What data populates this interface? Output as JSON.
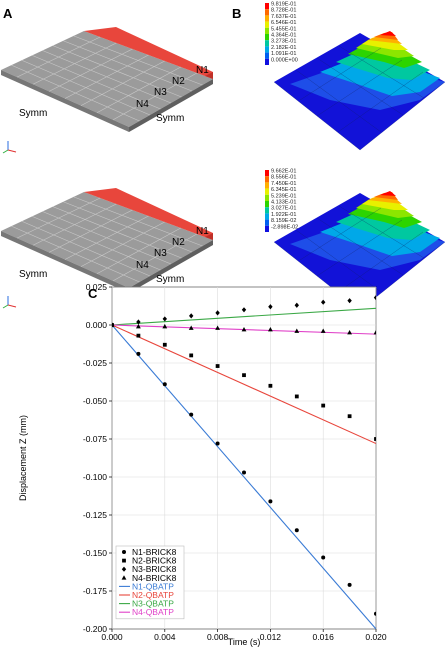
{
  "panels": {
    "a": {
      "letter": "A",
      "models": [
        {
          "nodes": [
            "N1",
            "N2",
            "N3",
            "N4"
          ],
          "symm_left": "Symm",
          "symm_right": "Symm"
        },
        {
          "nodes": [
            "N1",
            "N2",
            "N3",
            "N4"
          ],
          "symm_left": "Symm",
          "symm_right": "Symm"
        }
      ]
    },
    "b": {
      "letter": "B",
      "contours": [
        {
          "legend": [
            "9.819E-01",
            "8.728E-01",
            "7.637E-01",
            "6.546E-01",
            "5.455E-01",
            "4.364E-01",
            "3.273E-01",
            "2.182E-01",
            "1.091E-01",
            "0.000E+00"
          ]
        },
        {
          "legend": [
            "9.662E-01",
            "8.556E-01",
            "7.450E-01",
            "6.345E-01",
            "5.239E-01",
            "4.133E-01",
            "3.027E-01",
            "1.922E-01",
            "8.159E-02",
            "-2.898E-02"
          ]
        }
      ]
    },
    "c": {
      "letter": "C"
    }
  },
  "colors": {
    "plate": "#9b9b9b",
    "plate_side": "#6f6f6f",
    "loaded_strip": "#e8463c",
    "contour_scale": [
      "#ff0000",
      "#ff6a00",
      "#ffb000",
      "#e8f000",
      "#8ce600",
      "#2cd400",
      "#00c8a0",
      "#00a8e8",
      "#0060f0",
      "#1010e0"
    ]
  },
  "chart_data": {
    "type": "line",
    "title": "",
    "xlabel": "Time (s)",
    "ylabel": "Displacement Z (mm)",
    "xlim": [
      0.0,
      0.02
    ],
    "ylim": [
      -0.2,
      0.025
    ],
    "xticks": [
      "0.000",
      "0.004",
      "0.008",
      "0.012",
      "0.016",
      "0.020"
    ],
    "xtick_values": [
      0.0,
      0.004,
      0.008,
      0.012,
      0.016,
      0.02
    ],
    "yticks": [
      "0.025",
      "0.000",
      "-0.025",
      "-0.050",
      "-0.075",
      "-0.100",
      "-0.125",
      "-0.150",
      "-0.175",
      "-0.200"
    ],
    "ytick_values": [
      0.025,
      0.0,
      -0.025,
      -0.05,
      -0.075,
      -0.1,
      -0.125,
      -0.15,
      -0.175,
      -0.2
    ],
    "grid": true,
    "legend_position": "bottom-left",
    "x": [
      0.0,
      0.002,
      0.004,
      0.006,
      0.008,
      0.01,
      0.012,
      0.014,
      0.016,
      0.018,
      0.02
    ],
    "markers": [
      {
        "name": "N1-BRICK8",
        "marker": "circle",
        "color": "#000000",
        "values": [
          0.0,
          -0.019,
          -0.039,
          -0.059,
          -0.078,
          -0.097,
          -0.116,
          -0.135,
          -0.153,
          -0.171,
          -0.19
        ]
      },
      {
        "name": "N2-BRICK8",
        "marker": "square",
        "color": "#000000",
        "values": [
          0.0,
          -0.007,
          -0.013,
          -0.02,
          -0.027,
          -0.033,
          -0.04,
          -0.047,
          -0.053,
          -0.06,
          -0.075
        ]
      },
      {
        "name": "N3-BRICK8",
        "marker": "diamond",
        "color": "#000000",
        "values": [
          0.0,
          0.002,
          0.004,
          0.006,
          0.008,
          0.01,
          0.012,
          0.013,
          0.015,
          0.016,
          0.018
        ]
      },
      {
        "name": "N4-BRICK8",
        "marker": "triangle",
        "color": "#000000",
        "values": [
          0.0,
          -0.001,
          -0.001,
          -0.002,
          -0.002,
          -0.003,
          -0.003,
          -0.004,
          -0.004,
          -0.005,
          -0.005
        ]
      }
    ],
    "lines": [
      {
        "name": "N1-QBATP",
        "color": "#3a7bd5",
        "values": [
          0.0,
          -0.2
        ]
      },
      {
        "name": "N2-QBATP",
        "color": "#e8463c",
        "values": [
          0.0,
          -0.078
        ]
      },
      {
        "name": "N3-QBATP",
        "color": "#3aa845",
        "values": [
          0.0,
          0.011
        ]
      },
      {
        "name": "N4-QBATP",
        "color": "#e040c8",
        "values": [
          0.0,
          -0.006
        ]
      }
    ]
  }
}
